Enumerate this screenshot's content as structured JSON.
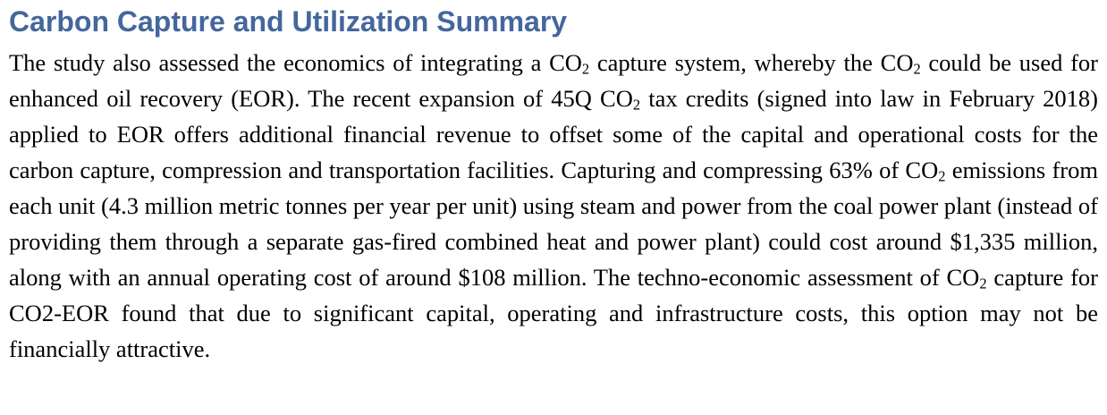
{
  "page": {
    "title": "Carbon Capture and Utilization Summary",
    "paragraph": [
      {
        "text": "The study also assessed the economics of integrating a CO",
        "subscript": false
      },
      {
        "text": "2",
        "subscript": true
      },
      {
        "text": " capture system, whereby the CO",
        "subscript": false
      },
      {
        "text": "2",
        "subscript": true
      },
      {
        "text": " could be used for enhanced oil recovery (EOR). The recent expansion of 45Q CO",
        "subscript": false
      },
      {
        "text": "2",
        "subscript": true
      },
      {
        "text": " tax credits (signed into law in February 2018) applied to EOR offers additional financial revenue to offset some of the capital and operational costs for the carbon capture, compression and transportation facilities.  Capturing and compressing 63% of CO",
        "subscript": false
      },
      {
        "text": "2",
        "subscript": true
      },
      {
        "text": " emissions from each unit (4.3 million metric tonnes per year per unit) using steam and power from the coal power plant (instead of providing them through a separate gas-fired combined heat and power plant) could cost around $1,335 million, along with an annual operating cost of around $108 million. The techno-economic assessment of CO",
        "subscript": false
      },
      {
        "text": "2",
        "subscript": true
      },
      {
        "text": " capture for CO2-EOR found that due to significant capital, operating and infrastructure costs, this option may not be financially attractive.",
        "subscript": false
      }
    ],
    "figures": {
      "capture_share_pct": "63%",
      "co2_per_unit": "4.3 million metric tonnes per year per unit",
      "capital_cost": "$1,335 million",
      "annual_operating_cost": "$108 million",
      "tax_credit": "45Q",
      "law_signed": "February 2018"
    }
  },
  "colors": {
    "heading": "#44679C",
    "body_text": "#000000",
    "background": "#FFFFFF"
  }
}
